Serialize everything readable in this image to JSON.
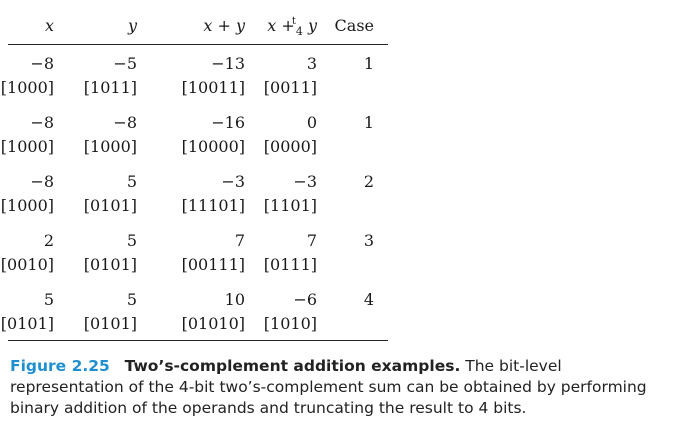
{
  "table": {
    "headers": {
      "x": "x",
      "y": "y",
      "sum_lhs": "x",
      "sum_op": "+",
      "sum_rhs": "y",
      "tsum_lhs": "x",
      "tsum_op": "+",
      "tsum_sup": "t",
      "tsum_sub": "4",
      "tsum_rhs": "y",
      "case": "Case"
    },
    "rows": [
      {
        "x": "−8",
        "x_bits": "[1000]",
        "y": "−5",
        "y_bits": "[1011]",
        "sum": "−13",
        "sum_bits": "[10011]",
        "tsum": "3",
        "tsum_bits": "[0011]",
        "case": "1"
      },
      {
        "x": "−8",
        "x_bits": "[1000]",
        "y": "−8",
        "y_bits": "[1000]",
        "sum": "−16",
        "sum_bits": "[10000]",
        "tsum": "0",
        "tsum_bits": "[0000]",
        "case": "1"
      },
      {
        "x": "−8",
        "x_bits": "[1000]",
        "y": "5",
        "y_bits": "[0101]",
        "sum": "−3",
        "sum_bits": "[11101]",
        "tsum": "−3",
        "tsum_bits": "[1101]",
        "case": "2"
      },
      {
        "x": "2",
        "x_bits": "[0010]",
        "y": "5",
        "y_bits": "[0101]",
        "sum": "7",
        "sum_bits": "[00111]",
        "tsum": "7",
        "tsum_bits": "[0111]",
        "case": "3"
      },
      {
        "x": "5",
        "x_bits": "[0101]",
        "y": "5",
        "y_bits": "[0101]",
        "sum": "10",
        "sum_bits": "[01010]",
        "tsum": "−6",
        "tsum_bits": "[1010]",
        "case": "4"
      }
    ]
  },
  "caption": {
    "label": "Figure 2.25",
    "title": "Two’s-complement addition examples.",
    "text": "The bit-level representation of the 4-bit two’s-complement sum can be obtained by performing binary addition of the operands and truncating the result to 4 bits."
  }
}
